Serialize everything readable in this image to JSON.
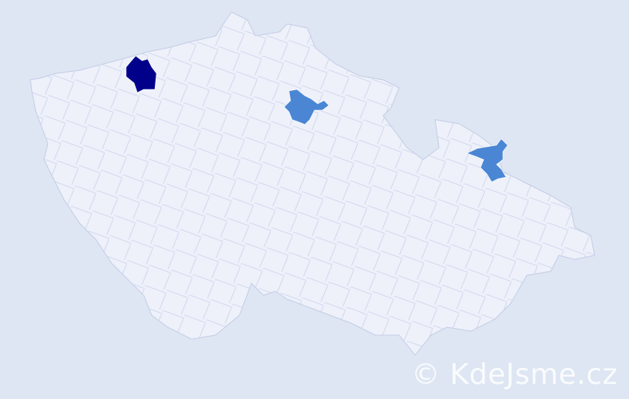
{
  "map": {
    "background_color": "#dde6f2",
    "land_color": "#eef1fa",
    "border_color": "#c5cde6",
    "highlight_levels": [
      {
        "level": "high",
        "color": "#00008b"
      },
      {
        "level": "medium",
        "color": "#4a86d4"
      }
    ]
  },
  "watermark": {
    "text": "© KdeJsme.cz"
  }
}
